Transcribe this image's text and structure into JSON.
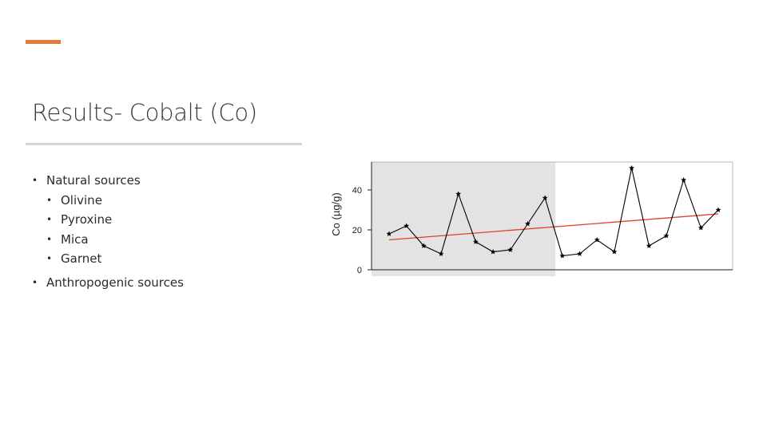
{
  "slide": {
    "title": "Results- Cobalt (Co)",
    "accent_color": "#E07B39",
    "bullets": {
      "natural": "Natural sources",
      "natural_items": [
        "Olivine",
        "Pyroxine",
        "Mica",
        "Garnet"
      ],
      "anthropogenic": "Anthropogenic sources"
    }
  },
  "chart_data": {
    "type": "line",
    "ylabel": "Co (µg/g)",
    "ylim": [
      0,
      54
    ],
    "yticks": [
      0,
      20,
      40
    ],
    "x": [
      1,
      2,
      3,
      4,
      5,
      6,
      7,
      8,
      9,
      10,
      11,
      12,
      13,
      14,
      15,
      16,
      17,
      18,
      19,
      20
    ],
    "series": [
      {
        "values": [
          18,
          22,
          12,
          8,
          38,
          14,
          9,
          10,
          23,
          36,
          7,
          8,
          15,
          9,
          51,
          12,
          17,
          45,
          21,
          30
        ],
        "color": "#000000",
        "marker": "star"
      }
    ],
    "trendline": {
      "start": 15,
      "end": 28,
      "color": "#E0402A"
    },
    "shaded_region": {
      "x_start": 0,
      "x_end": 10.6,
      "color": "#e3e3e3"
    },
    "grid": false
  }
}
